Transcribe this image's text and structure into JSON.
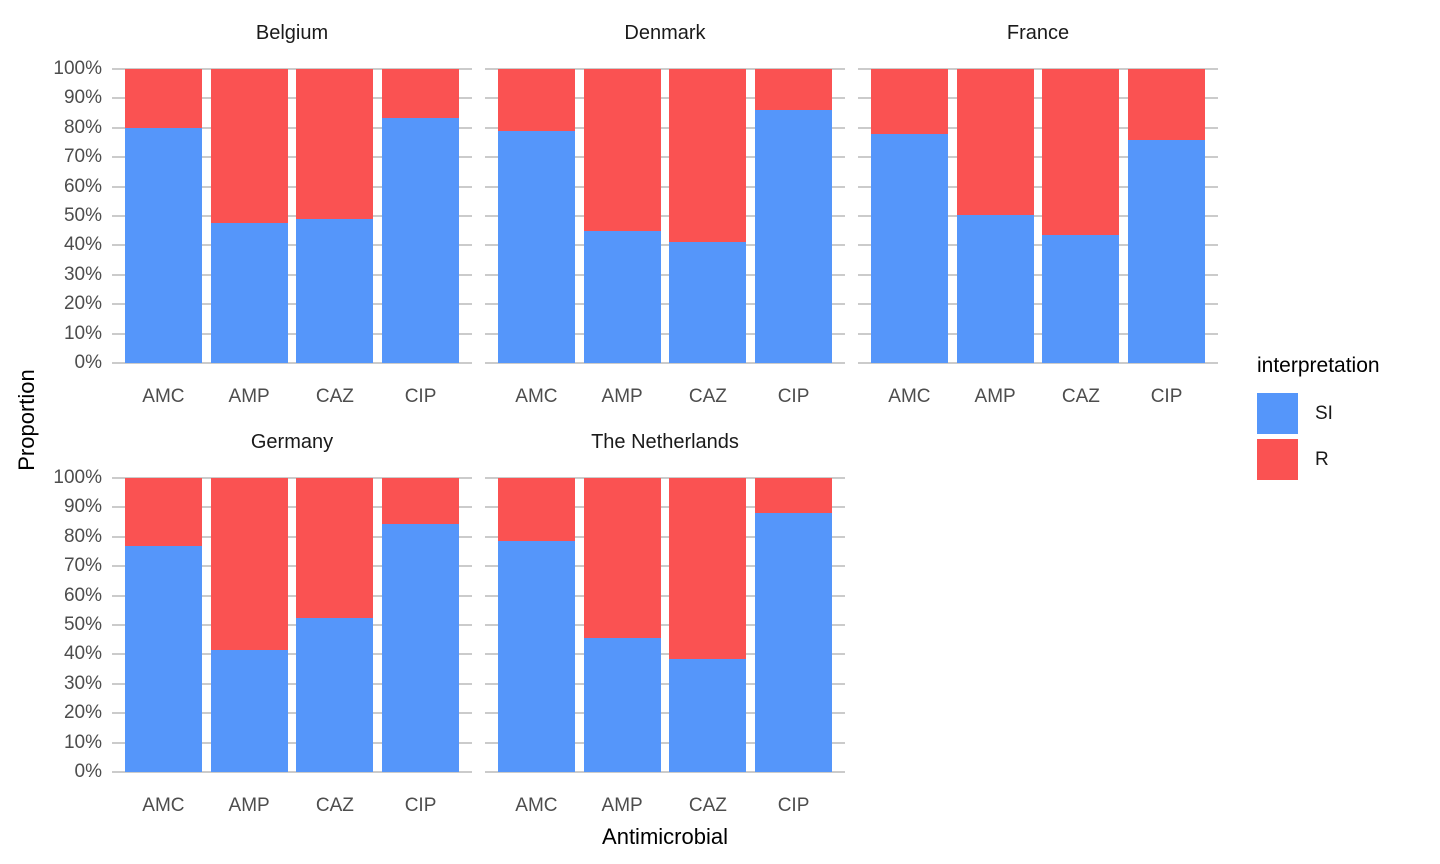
{
  "chart_data": {
    "type": "bar",
    "variant": "stacked-100-percent",
    "facet_by": "country",
    "title": "",
    "xlabel": "Antimicrobial",
    "ylabel": "Proportion",
    "categories": [
      "AMC",
      "AMP",
      "CAZ",
      "CIP"
    ],
    "y_ticks": [
      "0%",
      "10%",
      "20%",
      "30%",
      "40%",
      "50%",
      "60%",
      "70%",
      "80%",
      "90%",
      "100%"
    ],
    "ylim": [
      0,
      100
    ],
    "grid": "horizontal-major-only",
    "legend": {
      "title": "interpretation",
      "position": "right",
      "items": [
        {
          "label": "SI",
          "color": "#5596FA"
        },
        {
          "label": "R",
          "color": "#FA5252"
        }
      ]
    },
    "facets": [
      {
        "title": "Belgium",
        "series": {
          "SI": [
            80,
            47.5,
            49,
            83.5
          ],
          "R": [
            20,
            52.5,
            51,
            16.5
          ]
        }
      },
      {
        "title": "Denmark",
        "series": {
          "SI": [
            79,
            45,
            41,
            86
          ],
          "R": [
            21,
            55,
            59,
            14
          ]
        }
      },
      {
        "title": "France",
        "series": {
          "SI": [
            78,
            50.5,
            43.5,
            76
          ],
          "R": [
            22,
            49.5,
            56.5,
            24
          ]
        }
      },
      {
        "title": "Germany",
        "series": {
          "SI": [
            77,
            41.5,
            52.5,
            84.5
          ],
          "R": [
            23,
            58.5,
            47.5,
            15.5
          ]
        }
      },
      {
        "title": "The Netherlands",
        "series": {
          "SI": [
            78.5,
            45.5,
            38.5,
            88
          ],
          "R": [
            21.5,
            54.5,
            61.5,
            12
          ]
        }
      }
    ],
    "colors": {
      "SI": "#5596FA",
      "R": "#FA5252"
    }
  }
}
